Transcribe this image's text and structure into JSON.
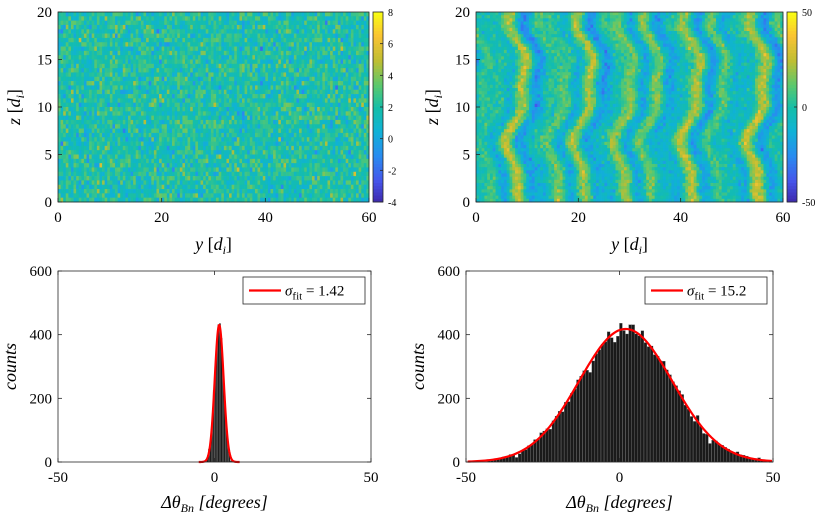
{
  "chart_data": [
    {
      "type": "heatmap",
      "panel": "top-left",
      "xlabel": "y [d_i]",
      "xlabel_parts": {
        "var": "y",
        "open": "[",
        "sym": "d",
        "sub": "i",
        "close": "]"
      },
      "ylabel": "z [d_i]",
      "ylabel_parts": {
        "var": "z",
        "open": "[",
        "sym": "d",
        "sub": "i",
        "close": "]"
      },
      "xlim": [
        0,
        60
      ],
      "ylim": [
        0,
        20
      ],
      "xticks": [
        "0",
        "20",
        "40",
        "60"
      ],
      "yticks": [
        "0",
        "5",
        "10",
        "15",
        "20"
      ],
      "colorbar": {
        "range": [
          -4,
          8
        ],
        "ticks": [
          "8",
          "6",
          "4",
          "2",
          "0",
          "-2",
          "-4"
        ],
        "colormap": "parula"
      },
      "field_pattern": "fine random noise"
    },
    {
      "type": "heatmap",
      "panel": "top-right",
      "xlabel": "y [d_i]",
      "xlabel_parts": {
        "var": "y",
        "open": "[",
        "sym": "d",
        "sub": "i",
        "close": "]"
      },
      "ylabel": "z [d_i]",
      "ylabel_parts": {
        "var": "z",
        "open": "[",
        "sym": "d",
        "sub": "i",
        "close": "]"
      },
      "xlim": [
        0,
        60
      ],
      "ylim": [
        0,
        20
      ],
      "xticks": [
        "0",
        "20",
        "40",
        "60"
      ],
      "yticks": [
        "0",
        "5",
        "10",
        "15",
        "20"
      ],
      "colorbar": {
        "range": [
          -50,
          50
        ],
        "ticks": [
          "50",
          "0",
          "-50"
        ],
        "colormap": "parula"
      },
      "field_pattern": "vertical wavy streaks"
    },
    {
      "type": "bar",
      "panel": "bottom-left",
      "xlabel": "Δθ_Bn [degrees]",
      "xlabel_parts": {
        "delta": "Δθ",
        "sub": "Bn",
        "units": "[degrees]"
      },
      "ylabel": "counts",
      "xlim": [
        -50,
        50
      ],
      "ylim": [
        0,
        600
      ],
      "xticks": [
        "-50",
        "0",
        "50"
      ],
      "yticks": [
        "0",
        "200",
        "400",
        "600"
      ],
      "histogram": {
        "center": 1.5,
        "sigma": 1.42,
        "peak": 445,
        "bin_width": 0.5
      },
      "fit": {
        "type": "gaussian",
        "center": 1.5,
        "sigma": 1.42,
        "peak": 430,
        "color": "#ff0000"
      },
      "legend": {
        "label_symbol": "σ",
        "label_sub": "fit",
        "label_value": "= 1.42",
        "position": "top-right"
      }
    },
    {
      "type": "bar",
      "panel": "bottom-right",
      "xlabel": "Δθ_Bn [degrees]",
      "xlabel_parts": {
        "delta": "Δθ",
        "sub": "Bn",
        "units": "[degrees]"
      },
      "ylabel": "counts",
      "xlim": [
        -50,
        50
      ],
      "ylim": [
        0,
        600
      ],
      "xticks": [
        "-50",
        "0",
        "50"
      ],
      "yticks": [
        "0",
        "200",
        "400",
        "600"
      ],
      "histogram": {
        "center": 2,
        "sigma": 15.2,
        "peak": 415,
        "bin_width": 1,
        "range": [
          -43,
          48
        ]
      },
      "fit": {
        "type": "gaussian",
        "center": 2,
        "sigma": 15.2,
        "peak": 418,
        "color": "#ff0000"
      },
      "legend": {
        "label_symbol": "σ",
        "label_sub": "fit",
        "label_value": "= 15.2",
        "position": "top-right"
      }
    }
  ]
}
